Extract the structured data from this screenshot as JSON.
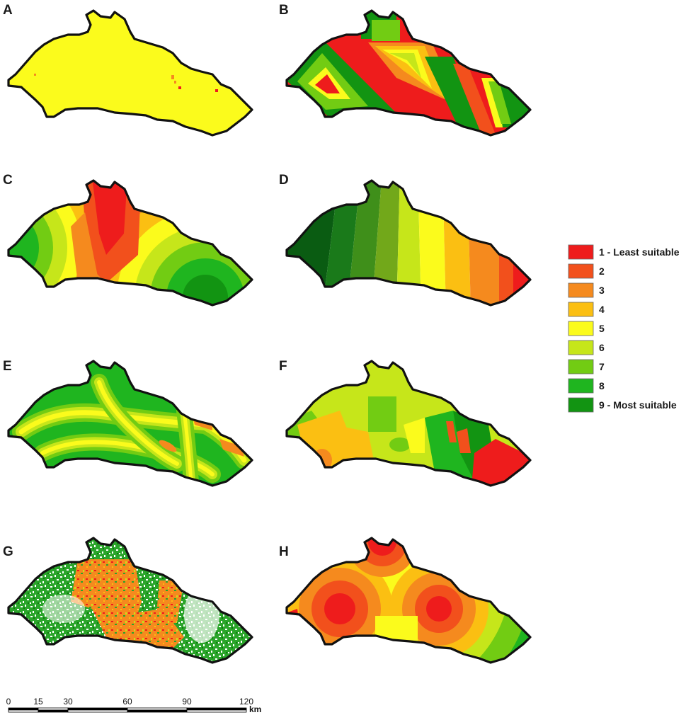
{
  "panels": [
    {
      "label": "A",
      "style": "uniform"
    },
    {
      "label": "B",
      "style": "bands-diagonal"
    },
    {
      "label": "C",
      "style": "radial-dual"
    },
    {
      "label": "D",
      "style": "vertical-gradient"
    },
    {
      "label": "E",
      "style": "river-buffer"
    },
    {
      "label": "F",
      "style": "patches"
    },
    {
      "label": "G",
      "style": "speckle"
    },
    {
      "label": "H",
      "style": "radial-triple"
    }
  ],
  "legend": {
    "items": [
      {
        "value": 1,
        "label": "1 - Least suitable",
        "color": "#ee1c1c"
      },
      {
        "value": 2,
        "label": "2",
        "color": "#f2501c"
      },
      {
        "value": 3,
        "label": "3",
        "color": "#f58a1e"
      },
      {
        "value": 4,
        "label": "4",
        "color": "#fbbf12"
      },
      {
        "value": 5,
        "label": "5",
        "color": "#fbfb1c"
      },
      {
        "value": 6,
        "label": "6",
        "color": "#c6e61a"
      },
      {
        "value": 7,
        "label": "7",
        "color": "#72cc13"
      },
      {
        "value": 8,
        "label": "8",
        "color": "#1fb51f"
      },
      {
        "value": 9,
        "label": "9 - Most suitable",
        "color": "#129412"
      }
    ]
  },
  "scale_bar": {
    "ticks": [
      "0",
      "15",
      "30",
      "60",
      "90",
      "120"
    ],
    "tick_values": [
      0,
      15,
      30,
      60,
      90,
      120
    ],
    "unit": "km"
  },
  "colors": {
    "outline": "#111111",
    "dark_green": "#0a5c12",
    "white_speckle": "#ffffff"
  }
}
